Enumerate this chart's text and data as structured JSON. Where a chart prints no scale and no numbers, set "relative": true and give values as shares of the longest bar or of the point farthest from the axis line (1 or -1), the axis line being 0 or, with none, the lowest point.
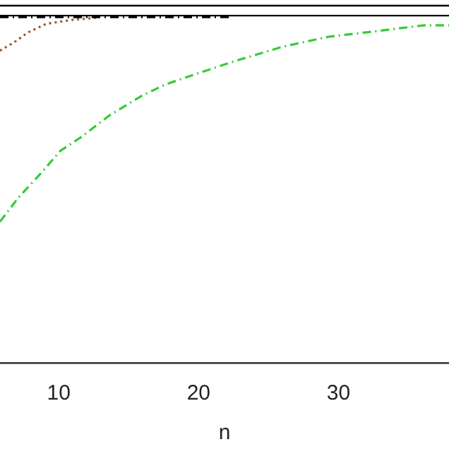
{
  "chart_data": {
    "type": "line",
    "xlabel": "n",
    "relative": true,
    "xlim": [
      5.8,
      37.9
    ],
    "xticks": [
      10,
      20,
      30
    ],
    "grid": false,
    "legend": false,
    "marker": "none",
    "series": [
      {
        "color": "#000000",
        "line_style": "solid",
        "x": [
          5.8,
          37.9
        ],
        "values": [
          1,
          1
        ]
      },
      {
        "color": "#000000",
        "line_style": "solid",
        "x": [
          5.8,
          37.9
        ],
        "values": [
          0.972,
          0.972
        ]
      },
      {
        "color": "#000000",
        "line_style": "dashed",
        "x": [
          5.8,
          22.3
        ],
        "values": [
          0.968,
          0.968
        ]
      },
      {
        "color": "#a0522d",
        "line_style": "dotted",
        "x": [
          5.8,
          6.8,
          7.8,
          9.1,
          10.9,
          12.9
        ],
        "values": [
          0.874,
          0.897,
          0.925,
          0.949,
          0.96,
          0.967
        ]
      },
      {
        "color": "#33cc33",
        "line_style": "dashed",
        "x": [
          5.8,
          7.1,
          8.8,
          10.1,
          11.6,
          13.6,
          15.9,
          17.6,
          19.9,
          22.7,
          26.0,
          29.3,
          32.8,
          36.1,
          37.9
        ],
        "values": [
          0.395,
          0.462,
          0.534,
          0.593,
          0.632,
          0.692,
          0.747,
          0.779,
          0.81,
          0.846,
          0.885,
          0.913,
          0.929,
          0.945,
          0.945
        ]
      }
    ]
  }
}
